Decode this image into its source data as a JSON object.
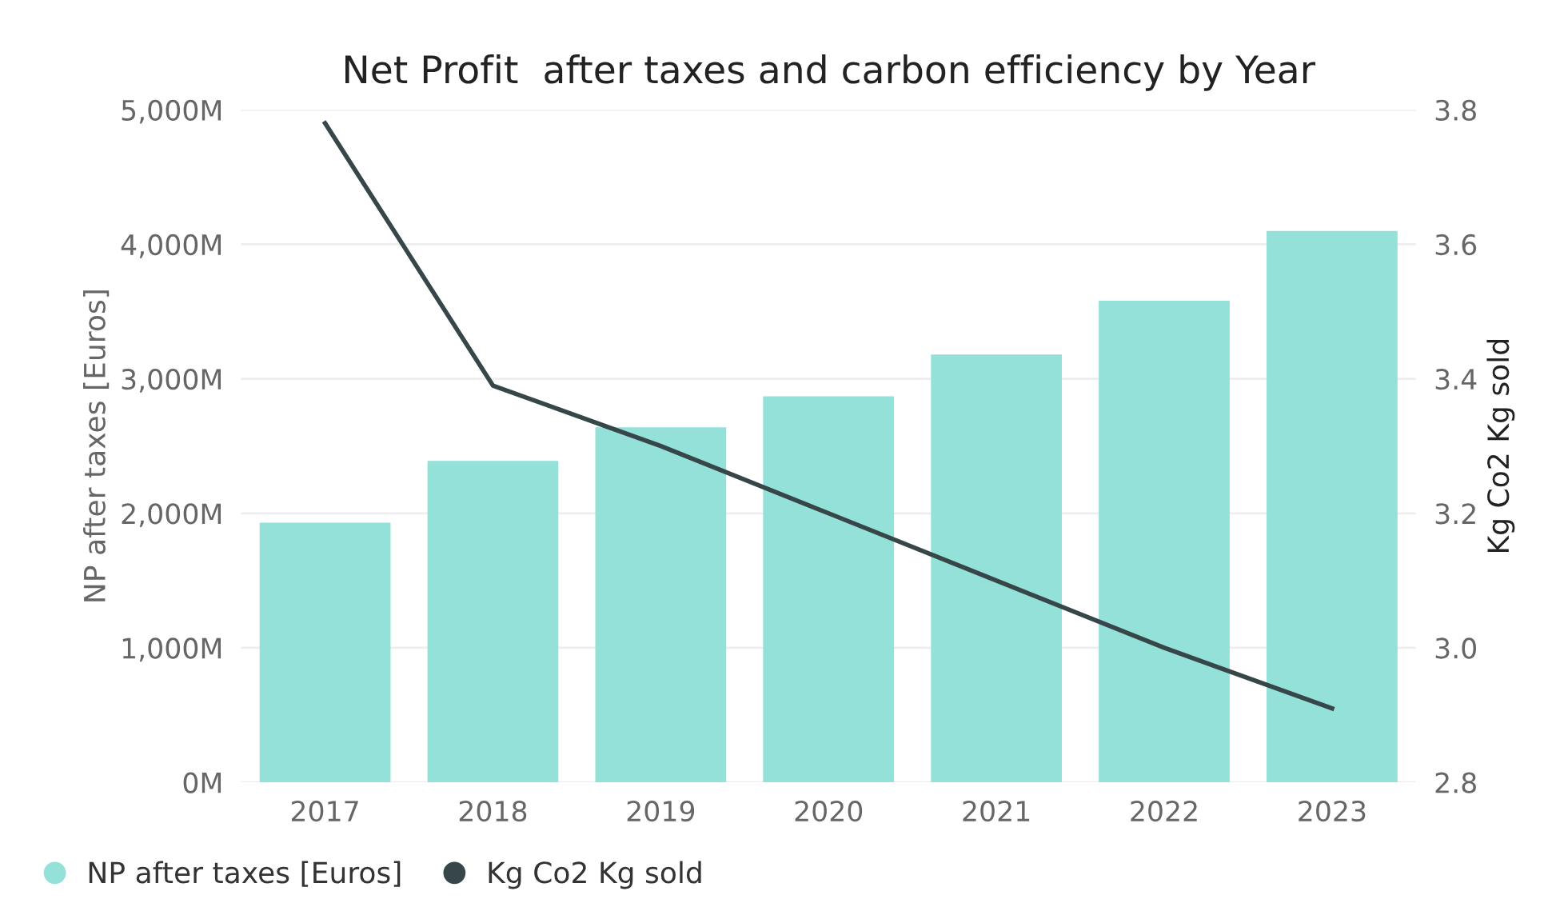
{
  "chart_data": {
    "type": "bar",
    "title": "Net Profit  after taxes and carbon efficiency by Year",
    "categories": [
      "2017",
      "2018",
      "2019",
      "2020",
      "2021",
      "2022",
      "2023"
    ],
    "series": [
      {
        "name": "NP after taxes [Euros]",
        "color": "#93e1d8",
        "values": [
          1930,
          2390,
          2640,
          2870,
          3180,
          3580,
          4100
        ]
      },
      {
        "name": "Kg Co2 Kg sold",
        "color": "#374649",
        "type": "line",
        "axis": "y2",
        "values": [
          3.78,
          3.39,
          3.3,
          3.2,
          3.1,
          3.0,
          2.91
        ]
      }
    ],
    "ylabel": "NP after taxes [Euros]",
    "y2label": "Kg Co2 Kg sold",
    "ylim": [
      0,
      5000
    ],
    "yticks": [
      {
        "value": 0,
        "label": "0M"
      },
      {
        "value": 1000,
        "label": "1,000M"
      },
      {
        "value": 2000,
        "label": "2,000M"
      },
      {
        "value": 3000,
        "label": "3,000M"
      },
      {
        "value": 4000,
        "label": "4,000M"
      },
      {
        "value": 5000,
        "label": "5,000M"
      }
    ],
    "y2lim": [
      2.8,
      3.8
    ],
    "y2ticks": [
      {
        "value": 2.8,
        "label": "2.8"
      },
      {
        "value": 3.0,
        "label": "3.0"
      },
      {
        "value": 3.2,
        "label": "3.2"
      },
      {
        "value": 3.4,
        "label": "3.4"
      },
      {
        "value": 3.6,
        "label": "3.6"
      },
      {
        "value": 3.8,
        "label": "3.8"
      }
    ],
    "grid": "y",
    "legend": "bottom left",
    "marker": "none",
    "line_style": "solid"
  }
}
